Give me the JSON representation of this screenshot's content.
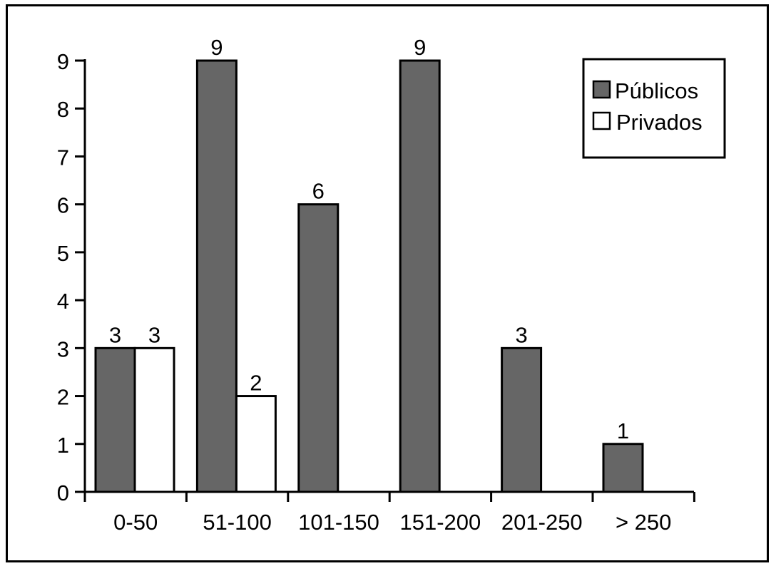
{
  "chart_data": {
    "type": "bar",
    "categories": [
      "0-50",
      "51-100",
      "101-150",
      "151-200",
      "201-250",
      "> 250"
    ],
    "series": [
      {
        "name": "Públicos",
        "values": [
          3,
          9,
          6,
          9,
          3,
          1
        ],
        "color": "#666666"
      },
      {
        "name": "Privados",
        "values": [
          3,
          2,
          null,
          null,
          null,
          null
        ],
        "color": "#ffffff"
      }
    ],
    "yticks": [
      "0",
      "1",
      "2",
      "3",
      "4",
      "5",
      "6",
      "7",
      "8",
      "9"
    ],
    "ylim": [
      0,
      9
    ],
    "grid": false,
    "legend": "top-right"
  }
}
